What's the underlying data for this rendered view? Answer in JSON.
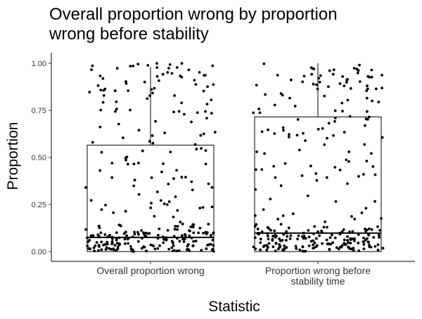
{
  "chart_data": {
    "type": "boxplot",
    "title_lines": [
      "Overall proportion wrong by proportion",
      "wrong before stability"
    ],
    "xlabel": "Statistic",
    "ylabel": "Proportion",
    "ylim": [
      0,
      1
    ],
    "yticks": [
      {
        "value": 0.0,
        "label": "0.00"
      },
      {
        "value": 0.25,
        "label": "0.25"
      },
      {
        "value": 0.5,
        "label": "0.50"
      },
      {
        "value": 0.75,
        "label": "0.75"
      },
      {
        "value": 1.0,
        "label": "1.00"
      }
    ],
    "grid": false,
    "legend": "none",
    "categories": [
      {
        "label_lines": [
          "Overall proportion wrong"
        ]
      },
      {
        "label_lines": [
          "Proportion wrong before",
          "stability time"
        ]
      }
    ],
    "boxes": [
      {
        "category": 0,
        "lower_whisker": 0.0,
        "q1": 0.0,
        "median": 0.075,
        "q3": 0.565,
        "upper_whisker": 0.98
      },
      {
        "category": 1,
        "lower_whisker": 0.0,
        "q1": 0.0,
        "median": 0.098,
        "q3": 0.715,
        "upper_whisker": 1.0
      }
    ],
    "points": [
      {
        "category": 0,
        "n": 300,
        "distribution": "heavy near 0, spread to 1",
        "seed": 17
      },
      {
        "category": 1,
        "n": 300,
        "distribution": "heavy near 0, spread to 1",
        "seed": 53
      }
    ]
  }
}
